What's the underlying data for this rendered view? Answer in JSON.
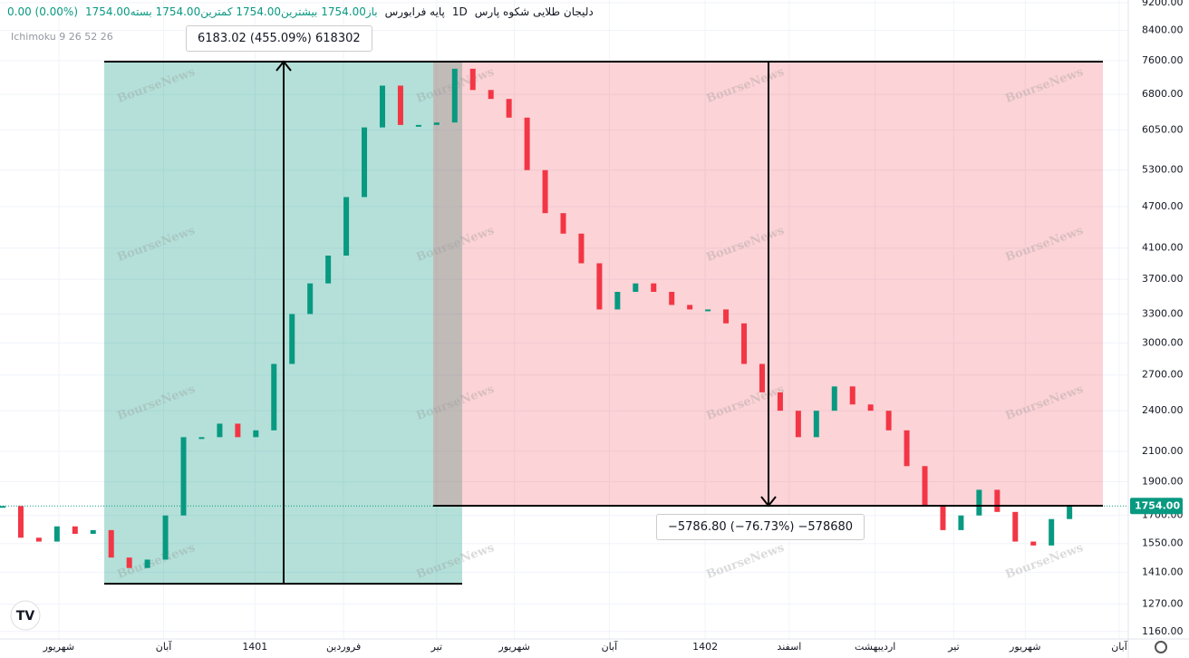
{
  "chart_data": {
    "type": "candle-line",
    "title": "دلیجان طلایی شکوه پارس",
    "interval": "1D",
    "exchange": "پایه فرابورس",
    "ohlc_text": "باز1754.00 بیشترین1754.00 کمترین1754.00 بسته1754.00",
    "change_text": "0.00 (0.00%)",
    "indicator": "Ichimoku 9 26 52 26",
    "watermark": "BourseNews",
    "up_color": "#089981",
    "down_color": "#f23645",
    "log_scale": true,
    "grid": true,
    "values": [
      1754,
      1580,
      1560,
      1640,
      1600,
      1620,
      1480,
      1430,
      1470,
      1700,
      2200,
      2200,
      2300,
      2200,
      2250,
      2800,
      3300,
      3650,
      4000,
      4850,
      6100,
      7000,
      6150,
      6150,
      6200,
      7400,
      6900,
      6700,
      6300,
      5300,
      4600,
      4300,
      3900,
      3350,
      3550,
      3650,
      3550,
      3400,
      3350,
      3350,
      3200,
      2800,
      2550,
      2400,
      2200,
      2400,
      2600,
      2450,
      2400,
      2250,
      2000,
      1750,
      1620,
      1700,
      1850,
      1720,
      1560,
      1540,
      1680,
      1754
    ],
    "xlim": [
      0,
      62
    ],
    "xticks": [
      {
        "value": 3.1,
        "label": "شهریور"
      },
      {
        "value": 8.9,
        "label": "آبان"
      },
      {
        "value": 13.95,
        "label": "1401"
      },
      {
        "value": 18.85,
        "label": "فروردین"
      },
      {
        "value": 24,
        "label": "تیر"
      },
      {
        "value": 28.3,
        "label": "شهریور"
      },
      {
        "value": 33.55,
        "label": "آبان"
      },
      {
        "value": 38.85,
        "label": "1402"
      },
      {
        "value": 43.5,
        "label": "اسفند"
      },
      {
        "value": 48.25,
        "label": "اردیبهشت"
      },
      {
        "value": 52.6,
        "label": "تیر"
      },
      {
        "value": 56.55,
        "label": "شهریور"
      },
      {
        "value": 61.75,
        "label": "آبان"
      }
    ],
    "ylim": [
      1132,
      9280
    ],
    "yticks": [
      {
        "value": 1160,
        "label": "1160.00"
      },
      {
        "value": 1270,
        "label": "1270.00"
      },
      {
        "value": 1410,
        "label": "1410.00"
      },
      {
        "value": 1550,
        "label": "1550.00"
      },
      {
        "value": 1700,
        "label": "1700.00"
      },
      {
        "value": 1900,
        "label": "1900.00"
      },
      {
        "value": 2100,
        "label": "2100.00"
      },
      {
        "value": 2400,
        "label": "2400.00"
      },
      {
        "value": 2700,
        "label": "2700.00"
      },
      {
        "value": 3000,
        "label": "3000.00"
      },
      {
        "value": 3300,
        "label": "3300.00"
      },
      {
        "value": 3700,
        "label": "3700.00"
      },
      {
        "value": 4100,
        "label": "4100.00"
      },
      {
        "value": 4700,
        "label": "4700.00"
      },
      {
        "value": 5300,
        "label": "5300.00"
      },
      {
        "value": 6050,
        "label": "6050.00"
      },
      {
        "value": 6800,
        "label": "6800.00"
      },
      {
        "value": 7600,
        "label": "7600.00"
      },
      {
        "value": 8400,
        "label": "8400.00"
      },
      {
        "value": 9200,
        "label": "9200.00"
      }
    ],
    "price_label": {
      "value": 1754,
      "label": "1754.00"
    },
    "measures": [
      {
        "label": "6183.02 (455.09%) 618302"
      },
      {
        "label": "−5786.80 (−76.73%) −578680"
      }
    ]
  }
}
